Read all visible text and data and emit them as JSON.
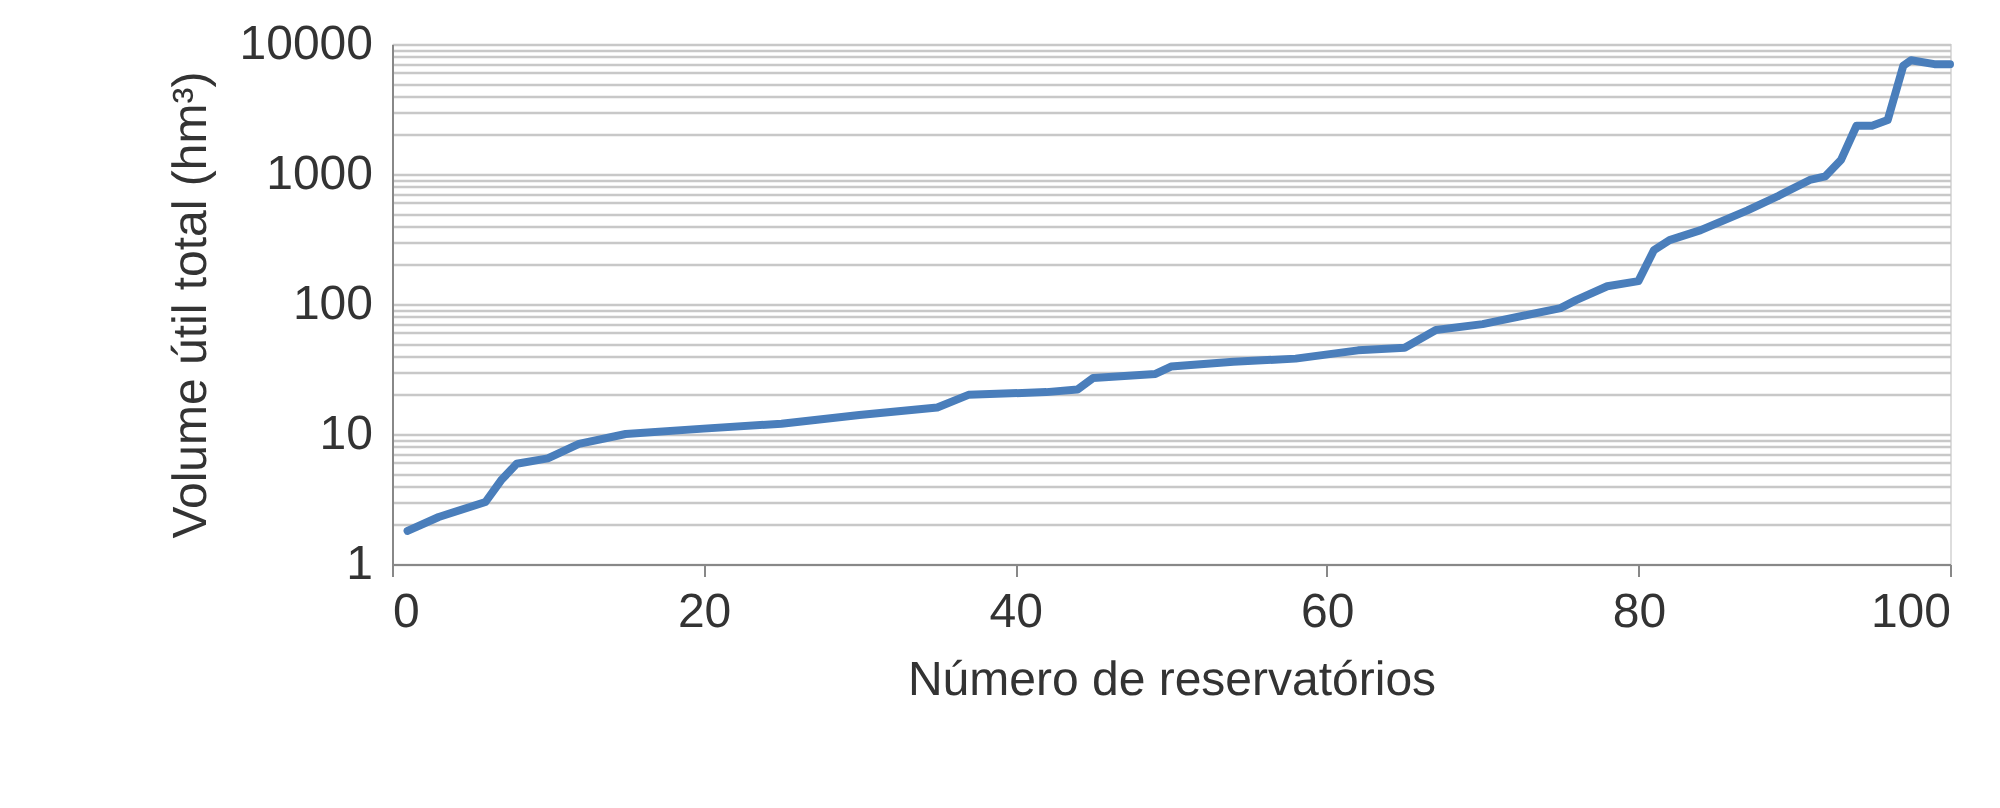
{
  "chart_data": {
    "type": "line",
    "xlabel": "Número de reservatórios",
    "ylabel": "Volume útil total  (hm³)",
    "x": [
      1,
      3,
      6,
      7,
      8,
      10,
      12,
      15,
      20,
      25,
      30,
      35,
      37,
      42,
      44,
      45,
      49,
      50,
      54,
      58,
      62,
      65,
      67,
      70,
      75,
      76,
      78,
      80,
      81,
      82,
      84,
      87,
      89,
      91,
      92,
      93,
      94,
      95,
      96,
      97,
      97.5,
      99,
      100
    ],
    "series": [
      {
        "color": "#4a7ebb",
        "values": [
          1.8,
          2.3,
          3.0,
          4.4,
          5.9,
          6.5,
          8.4,
          10,
          11,
          12,
          14,
          16,
          20,
          21,
          22,
          27,
          29,
          33,
          36,
          38,
          44,
          46,
          63,
          70,
          93,
          107,
          137,
          150,
          260,
          310,
          370,
          525,
          680,
          900,
          960,
          1280,
          2350,
          2350,
          2600,
          6800,
          7500,
          7000,
          7000
        ]
      }
    ],
    "xlim": [
      0,
      100
    ],
    "xticks": [
      0,
      20,
      40,
      60,
      80,
      100
    ],
    "ylim": [
      1,
      10000
    ],
    "log": "y",
    "yticks": [
      1,
      {
        "value": 2,
        "label": null
      },
      {
        "value": 3,
        "label": null
      },
      {
        "value": 4,
        "label": null
      },
      {
        "value": 5,
        "label": null
      },
      {
        "value": 6,
        "label": null
      },
      {
        "value": 7,
        "label": null
      },
      {
        "value": 8,
        "label": null
      },
      {
        "value": 9,
        "label": null
      },
      10,
      {
        "value": 20,
        "label": null
      },
      {
        "value": 30,
        "label": null
      },
      {
        "value": 40,
        "label": null
      },
      {
        "value": 50,
        "label": null
      },
      {
        "value": 60,
        "label": null
      },
      {
        "value": 70,
        "label": null
      },
      {
        "value": 80,
        "label": null
      },
      {
        "value": 90,
        "label": null
      },
      100,
      {
        "value": 200,
        "label": null
      },
      {
        "value": 300,
        "label": null
      },
      {
        "value": 400,
        "label": null
      },
      {
        "value": 500,
        "label": null
      },
      {
        "value": 600,
        "label": null
      },
      {
        "value": 700,
        "label": null
      },
      {
        "value": 800,
        "label": null
      },
      {
        "value": 900,
        "label": null
      },
      1000,
      {
        "value": 2000,
        "label": null
      },
      {
        "value": 3000,
        "label": null
      },
      {
        "value": 4000,
        "label": null
      },
      {
        "value": 5000,
        "label": null
      },
      {
        "value": 6000,
        "label": null
      },
      {
        "value": 7000,
        "label": null
      },
      {
        "value": 8000,
        "label": null
      },
      {
        "value": 9000,
        "label": null
      },
      10000
    ],
    "grid": "y",
    "marker": "none",
    "line_style": "solid",
    "legend": false
  }
}
